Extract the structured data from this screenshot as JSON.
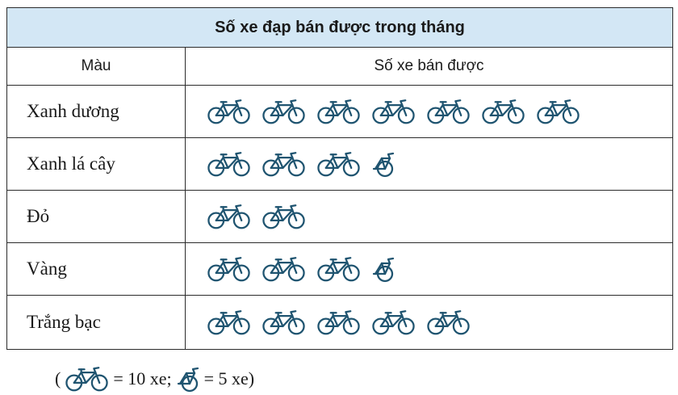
{
  "chart_data": {
    "type": "table",
    "title": "Số xe đạp bán được trong tháng",
    "columns": [
      "Màu",
      "Số xe bán được"
    ],
    "categories": [
      "Xanh dương",
      "Xanh lá cây",
      "Đỏ",
      "Vàng",
      "Trắng bạc"
    ],
    "series": [
      {
        "values": [
          70,
          35,
          20,
          35,
          50
        ]
      }
    ],
    "icon_counts": [
      {
        "full": 7,
        "half": 0
      },
      {
        "full": 3,
        "half": 1
      },
      {
        "full": 2,
        "half": 0
      },
      {
        "full": 3,
        "half": 1
      },
      {
        "full": 5,
        "half": 0
      }
    ],
    "icon": "bicycle-icon",
    "icon_color": "#1f5470",
    "header_color": "#d3e7f5"
  },
  "legend": {
    "open": "(",
    "full_text": "= 10 xe;",
    "half_text": "= 5 xe)"
  }
}
